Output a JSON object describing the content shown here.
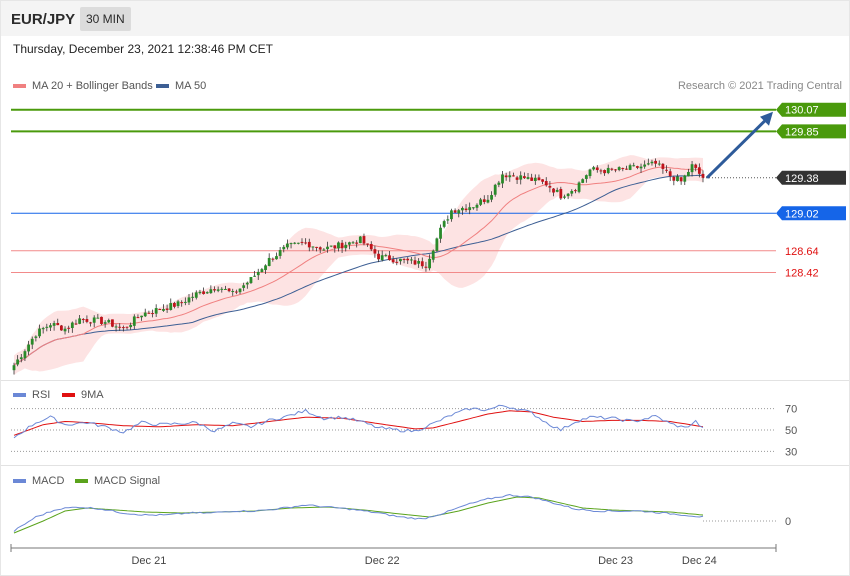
{
  "header": {
    "symbol": "EUR/JPY",
    "timeframe": "30 MIN"
  },
  "timestamp": "Thursday, December 23, 2021 12:38:46 PM CET",
  "legend": {
    "ma20_label": "MA 20 + Bollinger Bands",
    "ma50_label": "MA 50",
    "rsi_label": "RSI",
    "rsi9_label": "9MA",
    "macd_label": "MACD",
    "signal_label": "MACD Signal"
  },
  "copyright": "Research © 2021 Trading Central",
  "colors": {
    "ma20": "#f08080",
    "ma50": "#3d5f94",
    "target": "#4a9a0c",
    "pivot": "#1565e8",
    "support": "#f28a8a",
    "last": "#333333",
    "bollinger": "#fde3e3",
    "rsi": "#6b88d6",
    "rsi9": "#e01010",
    "macd": "#6b88d6",
    "signal": "#5aa31c",
    "arrow": "#2e5b9a"
  },
  "chart_data": [
    {
      "type": "candlestick",
      "title": "EUR/JPY",
      "x_ticks": [
        "Dec 21",
        "Dec 22",
        "Dec 23",
        "Dec 24"
      ],
      "y_range": [
        127.35,
        130.27
      ],
      "levels": [
        {
          "value": 130.07,
          "label": "130.07",
          "role": "target"
        },
        {
          "value": 129.85,
          "label": "129.85",
          "role": "target"
        },
        {
          "value": 129.38,
          "label": "129.38",
          "role": "last"
        },
        {
          "value": 129.02,
          "label": "129.02",
          "role": "pivot"
        },
        {
          "value": 128.64,
          "label": "128.64",
          "role": "support"
        },
        {
          "value": 128.42,
          "label": "128.42",
          "role": "support"
        }
      ],
      "price_anchors": [
        [
          0,
          127.48
        ],
        [
          6,
          127.8
        ],
        [
          10,
          127.9
        ],
        [
          14,
          127.85
        ],
        [
          18,
          127.95
        ],
        [
          25,
          127.92
        ],
        [
          30,
          127.85
        ],
        [
          35,
          128.0
        ],
        [
          40,
          128.05
        ],
        [
          45,
          128.1
        ],
        [
          50,
          128.2
        ],
        [
          56,
          128.28
        ],
        [
          60,
          128.2
        ],
        [
          65,
          128.35
        ],
        [
          70,
          128.55
        ],
        [
          75,
          128.68
        ],
        [
          80,
          128.72
        ],
        [
          85,
          128.66
        ],
        [
          90,
          128.7
        ],
        [
          95,
          128.75
        ],
        [
          100,
          128.58
        ],
        [
          105,
          128.55
        ],
        [
          110,
          128.52
        ],
        [
          113,
          128.5
        ],
        [
          117,
          128.85
        ],
        [
          120,
          129.05
        ],
        [
          126,
          129.1
        ],
        [
          130,
          129.18
        ],
        [
          134,
          129.42
        ],
        [
          140,
          129.38
        ],
        [
          146,
          129.32
        ],
        [
          150,
          129.2
        ],
        [
          154,
          129.28
        ],
        [
          158,
          129.46
        ],
        [
          164,
          129.45
        ],
        [
          170,
          129.48
        ],
        [
          176,
          129.52
        ],
        [
          180,
          129.4
        ],
        [
          183,
          129.34
        ],
        [
          186,
          129.5
        ],
        [
          189,
          129.38
        ]
      ],
      "rsi_range": [
        20,
        80
      ],
      "rsi_levels": [
        70,
        50,
        30
      ],
      "rsi_anchors": [
        [
          0,
          43
        ],
        [
          6,
          57
        ],
        [
          10,
          62
        ],
        [
          14,
          55
        ],
        [
          20,
          57
        ],
        [
          25,
          53
        ],
        [
          30,
          48
        ],
        [
          35,
          57
        ],
        [
          40,
          55
        ],
        [
          45,
          56
        ],
        [
          50,
          57
        ],
        [
          55,
          49
        ],
        [
          60,
          56
        ],
        [
          65,
          53
        ],
        [
          70,
          59
        ],
        [
          75,
          63
        ],
        [
          80,
          68
        ],
        [
          85,
          61
        ],
        [
          90,
          62
        ],
        [
          95,
          58
        ],
        [
          100,
          52
        ],
        [
          105,
          50
        ],
        [
          110,
          49
        ],
        [
          115,
          56
        ],
        [
          120,
          64
        ],
        [
          125,
          70
        ],
        [
          130,
          69
        ],
        [
          134,
          73
        ],
        [
          138,
          70
        ],
        [
          142,
          66
        ],
        [
          146,
          57
        ],
        [
          150,
          50
        ],
        [
          154,
          58
        ],
        [
          158,
          62
        ],
        [
          164,
          61
        ],
        [
          170,
          58
        ],
        [
          176,
          63
        ],
        [
          180,
          56
        ],
        [
          184,
          52
        ],
        [
          187,
          58
        ],
        [
          189,
          51
        ]
      ],
      "rsi9_anchors": [
        [
          0,
          45
        ],
        [
          8,
          55
        ],
        [
          14,
          58
        ],
        [
          20,
          57
        ],
        [
          30,
          54
        ],
        [
          40,
          53
        ],
        [
          50,
          55
        ],
        [
          60,
          54
        ],
        [
          70,
          58
        ],
        [
          80,
          62
        ],
        [
          90,
          61
        ],
        [
          100,
          56
        ],
        [
          110,
          51
        ],
        [
          115,
          52
        ],
        [
          122,
          58
        ],
        [
          130,
          65
        ],
        [
          136,
          68
        ],
        [
          142,
          67
        ],
        [
          148,
          62
        ],
        [
          156,
          58
        ],
        [
          164,
          59
        ],
        [
          172,
          59
        ],
        [
          180,
          58
        ],
        [
          189,
          53
        ]
      ],
      "macd_anchors": [
        [
          0,
          -0.05
        ],
        [
          6,
          0.02
        ],
        [
          12,
          0.06
        ],
        [
          18,
          0.07
        ],
        [
          24,
          0.06
        ],
        [
          30,
          0.04
        ],
        [
          36,
          0.03
        ],
        [
          42,
          0.03
        ],
        [
          48,
          0.04
        ],
        [
          54,
          0.04
        ],
        [
          60,
          0.05
        ],
        [
          66,
          0.05
        ],
        [
          72,
          0.06
        ],
        [
          80,
          0.08
        ],
        [
          86,
          0.07
        ],
        [
          92,
          0.06
        ],
        [
          100,
          0.04
        ],
        [
          106,
          0.02
        ],
        [
          112,
          0.01
        ],
        [
          118,
          0.04
        ],
        [
          124,
          0.08
        ],
        [
          130,
          0.11
        ],
        [
          136,
          0.13
        ],
        [
          142,
          0.12
        ],
        [
          148,
          0.09
        ],
        [
          154,
          0.06
        ],
        [
          160,
          0.05
        ],
        [
          166,
          0.05
        ],
        [
          172,
          0.05
        ],
        [
          178,
          0.04
        ],
        [
          184,
          0.03
        ],
        [
          189,
          0.02
        ]
      ],
      "signal_anchors": [
        [
          0,
          -0.06
        ],
        [
          8,
          0.0
        ],
        [
          14,
          0.05
        ],
        [
          20,
          0.065
        ],
        [
          28,
          0.055
        ],
        [
          36,
          0.045
        ],
        [
          46,
          0.04
        ],
        [
          56,
          0.045
        ],
        [
          66,
          0.05
        ],
        [
          76,
          0.065
        ],
        [
          86,
          0.07
        ],
        [
          96,
          0.055
        ],
        [
          106,
          0.035
        ],
        [
          114,
          0.02
        ],
        [
          122,
          0.05
        ],
        [
          130,
          0.09
        ],
        [
          138,
          0.12
        ],
        [
          144,
          0.115
        ],
        [
          150,
          0.09
        ],
        [
          156,
          0.065
        ],
        [
          164,
          0.055
        ],
        [
          172,
          0.05
        ],
        [
          180,
          0.045
        ],
        [
          189,
          0.03
        ]
      ],
      "macd_range": [
        -0.12,
        0.18
      ],
      "macd_zero_label": "0"
    }
  ]
}
